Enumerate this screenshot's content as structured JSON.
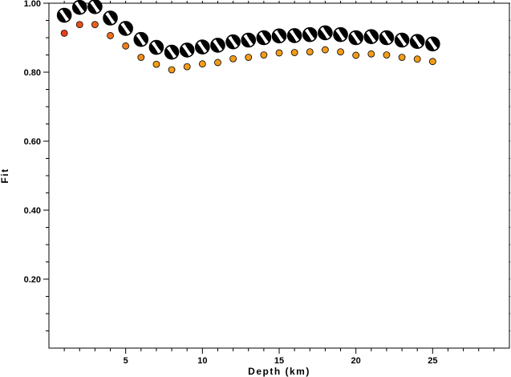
{
  "chart_data": {
    "type": "scatter",
    "title": "",
    "xlabel": "Depth (km)",
    "ylabel": "Fit",
    "xlim": [
      0,
      30
    ],
    "ylim": [
      0.0,
      1.0
    ],
    "x_ticks": [
      5,
      10,
      15,
      20,
      25
    ],
    "x_tick_labels": [
      "5",
      "10",
      "15",
      "20",
      "25"
    ],
    "y_ticks": [
      0.2,
      0.4,
      0.6,
      0.8,
      1.0
    ],
    "y_tick_labels": [
      "0.20",
      "0.40",
      "0.60",
      "0.80",
      "1.00"
    ],
    "grid": false,
    "legend": "none",
    "series": [
      {
        "marker": "focal-mechanism-beachball",
        "color": "#000000",
        "points": [
          {
            "x": 1,
            "y": 0.965
          },
          {
            "x": 2,
            "y": 0.988
          },
          {
            "x": 3,
            "y": 0.99
          },
          {
            "x": 4,
            "y": 0.957
          },
          {
            "x": 5,
            "y": 0.927
          },
          {
            "x": 6,
            "y": 0.895
          },
          {
            "x": 7,
            "y": 0.872
          },
          {
            "x": 8,
            "y": 0.858
          },
          {
            "x": 9,
            "y": 0.864
          },
          {
            "x": 10,
            "y": 0.873
          },
          {
            "x": 11,
            "y": 0.878
          },
          {
            "x": 12,
            "y": 0.888
          },
          {
            "x": 13,
            "y": 0.893
          },
          {
            "x": 14,
            "y": 0.9
          },
          {
            "x": 15,
            "y": 0.905
          },
          {
            "x": 16,
            "y": 0.906
          },
          {
            "x": 17,
            "y": 0.909
          },
          {
            "x": 18,
            "y": 0.914
          },
          {
            "x": 19,
            "y": 0.909
          },
          {
            "x": 20,
            "y": 0.9
          },
          {
            "x": 21,
            "y": 0.903
          },
          {
            "x": 22,
            "y": 0.9
          },
          {
            "x": 23,
            "y": 0.893
          },
          {
            "x": 24,
            "y": 0.889
          },
          {
            "x": 25,
            "y": 0.882
          }
        ]
      },
      {
        "marker": "circle",
        "color_start": "#e8401c",
        "color_end": "#f39c1a",
        "points": [
          {
            "x": 1,
            "y": 0.913
          },
          {
            "x": 2,
            "y": 0.938
          },
          {
            "x": 3,
            "y": 0.938
          },
          {
            "x": 4,
            "y": 0.906
          },
          {
            "x": 5,
            "y": 0.876
          },
          {
            "x": 6,
            "y": 0.843
          },
          {
            "x": 7,
            "y": 0.823
          },
          {
            "x": 8,
            "y": 0.807
          },
          {
            "x": 9,
            "y": 0.816
          },
          {
            "x": 10,
            "y": 0.824
          },
          {
            "x": 11,
            "y": 0.828
          },
          {
            "x": 12,
            "y": 0.839
          },
          {
            "x": 13,
            "y": 0.843
          },
          {
            "x": 14,
            "y": 0.85
          },
          {
            "x": 15,
            "y": 0.856
          },
          {
            "x": 16,
            "y": 0.857
          },
          {
            "x": 17,
            "y": 0.859
          },
          {
            "x": 18,
            "y": 0.865
          },
          {
            "x": 19,
            "y": 0.859
          },
          {
            "x": 20,
            "y": 0.849
          },
          {
            "x": 21,
            "y": 0.853
          },
          {
            "x": 22,
            "y": 0.85
          },
          {
            "x": 23,
            "y": 0.843
          },
          {
            "x": 24,
            "y": 0.838
          },
          {
            "x": 25,
            "y": 0.831
          }
        ]
      }
    ]
  }
}
